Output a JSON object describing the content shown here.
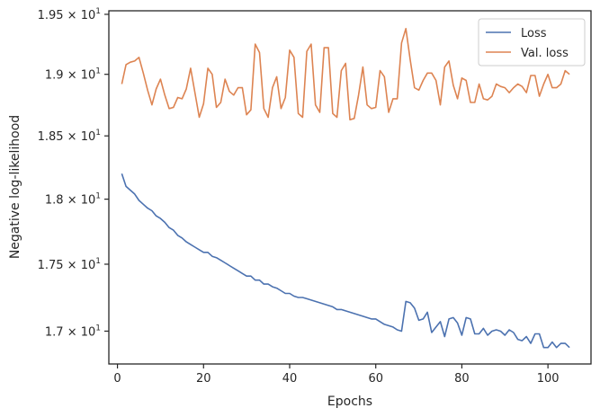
{
  "chart_data": {
    "type": "line",
    "title": "",
    "xlabel": "Epochs",
    "ylabel": "Negative log-likelihood",
    "xlim": [
      -2,
      110
    ],
    "ylim": [
      16.76,
      19.53
    ],
    "yscale": "log",
    "grid": false,
    "legend_position": "top-right",
    "xticks": [
      0,
      20,
      40,
      60,
      80,
      100
    ],
    "xtick_labels": [
      "0",
      "20",
      "40",
      "60",
      "80",
      "100"
    ],
    "yticks": [
      17.0,
      17.5,
      18.0,
      18.5,
      19.0,
      19.5
    ],
    "ytick_labels": [
      {
        "mantissa": "1.7",
        "exp": "1"
      },
      {
        "mantissa": "1.75",
        "exp": "1"
      },
      {
        "mantissa": "1.8",
        "exp": "1"
      },
      {
        "mantissa": "1.85",
        "exp": "1"
      },
      {
        "mantissa": "1.9",
        "exp": "1"
      },
      {
        "mantissa": "1.95",
        "exp": "1"
      }
    ],
    "x": [
      1,
      2,
      3,
      4,
      5,
      6,
      7,
      8,
      9,
      10,
      11,
      12,
      13,
      14,
      15,
      16,
      17,
      18,
      19,
      20,
      21,
      22,
      23,
      24,
      25,
      26,
      27,
      28,
      29,
      30,
      31,
      32,
      33,
      34,
      35,
      36,
      37,
      38,
      39,
      40,
      41,
      42,
      43,
      44,
      45,
      46,
      47,
      48,
      49,
      50,
      51,
      52,
      53,
      54,
      55,
      56,
      57,
      58,
      59,
      60,
      61,
      62,
      63,
      64,
      65,
      66,
      67,
      68,
      69,
      70,
      71,
      72,
      73,
      74,
      75,
      76,
      77,
      78,
      79,
      80,
      81,
      82,
      83,
      84,
      85,
      86,
      87,
      88,
      89,
      90,
      91,
      92,
      93,
      94,
      95,
      96,
      97,
      98,
      99,
      100,
      101,
      102,
      103,
      104,
      105
    ],
    "series": [
      {
        "name": "Loss",
        "color": "#4c72b0",
        "values": [
          18.2,
          18.1,
          18.07,
          18.04,
          17.99,
          17.96,
          17.93,
          17.91,
          17.87,
          17.85,
          17.82,
          17.78,
          17.76,
          17.72,
          17.7,
          17.67,
          17.65,
          17.63,
          17.61,
          17.59,
          17.59,
          17.56,
          17.55,
          17.53,
          17.51,
          17.49,
          17.47,
          17.45,
          17.43,
          17.41,
          17.41,
          17.38,
          17.38,
          17.35,
          17.35,
          17.33,
          17.32,
          17.3,
          17.28,
          17.28,
          17.26,
          17.25,
          17.25,
          17.24,
          17.23,
          17.22,
          17.21,
          17.2,
          17.19,
          17.18,
          17.16,
          17.16,
          17.15,
          17.14,
          17.13,
          17.12,
          17.11,
          17.1,
          17.09,
          17.09,
          17.07,
          17.05,
          17.04,
          17.03,
          17.01,
          17.0,
          17.22,
          17.21,
          17.17,
          17.08,
          17.09,
          17.14,
          16.99,
          17.03,
          17.07,
          16.96,
          17.09,
          17.1,
          17.06,
          16.97,
          17.1,
          17.09,
          16.98,
          16.98,
          17.02,
          16.97,
          17.0,
          17.01,
          17.0,
          16.97,
          17.01,
          16.99,
          16.94,
          16.93,
          16.96,
          16.91,
          16.98,
          16.98,
          16.88,
          16.88,
          16.92,
          16.88,
          16.91,
          16.91,
          16.88
        ]
      },
      {
        "name": "Val. loss",
        "color": "#dd8452",
        "values": [
          18.92,
          19.08,
          19.1,
          19.11,
          19.14,
          19.01,
          18.87,
          18.75,
          18.88,
          18.96,
          18.83,
          18.72,
          18.73,
          18.81,
          18.8,
          18.88,
          19.05,
          18.85,
          18.65,
          18.76,
          19.05,
          19.0,
          18.73,
          18.77,
          18.96,
          18.86,
          18.83,
          18.89,
          18.89,
          18.67,
          18.71,
          19.25,
          19.18,
          18.72,
          18.65,
          18.89,
          18.98,
          18.72,
          18.81,
          19.2,
          19.14,
          18.68,
          18.65,
          19.19,
          19.25,
          18.75,
          18.69,
          19.22,
          19.22,
          18.68,
          18.65,
          19.03,
          19.09,
          18.63,
          18.64,
          18.83,
          19.06,
          18.75,
          18.72,
          18.73,
          19.03,
          18.98,
          18.69,
          18.8,
          18.8,
          19.26,
          19.38,
          19.12,
          18.89,
          18.87,
          18.95,
          19.01,
          19.01,
          18.95,
          18.75,
          19.06,
          19.11,
          18.91,
          18.8,
          18.97,
          18.95,
          18.77,
          18.77,
          18.92,
          18.8,
          18.79,
          18.82,
          18.92,
          18.9,
          18.89,
          18.85,
          18.89,
          18.92,
          18.9,
          18.85,
          18.99,
          18.99,
          18.82,
          18.92,
          19.0,
          18.89,
          18.89,
          18.92,
          19.03,
          19.0
        ]
      }
    ]
  }
}
